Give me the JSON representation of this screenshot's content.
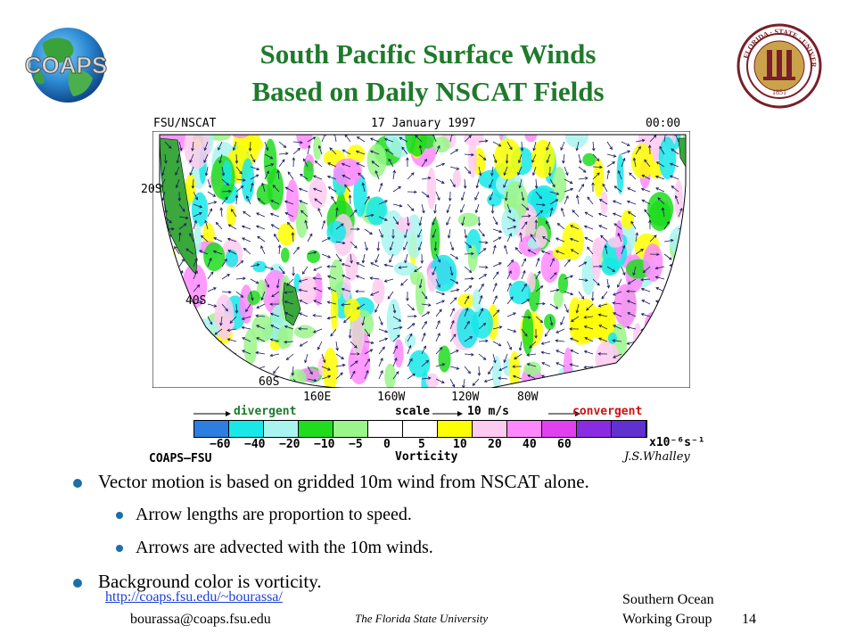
{
  "title": {
    "line1": "South Pacific Surface Winds",
    "line2": "Based on Daily NSCAT Fields"
  },
  "logo": {
    "text": "COAPS",
    "icon": "coaps-globe-logo"
  },
  "seal": {
    "icon": "florida-state-university-seal",
    "text": "FLORIDA STATE UNIVERSITY 1851"
  },
  "map": {
    "source_label": "FSU/NSCAT",
    "date_label": "17 January 1997",
    "time_label": "00:00",
    "lat_labels": [
      "20S",
      "40S",
      "60S"
    ],
    "lon_labels": [
      "160E",
      "160W",
      "120W",
      "80W"
    ],
    "legend_divergent": "divergent",
    "legend_convergent": "convergent",
    "scale_label": "scale",
    "scale_value": "10 m/s",
    "colorbar_ticks": [
      "−60",
      "−40",
      "−20",
      "−10",
      "−5",
      "0",
      "5",
      "10",
      "20",
      "40",
      "60"
    ],
    "colorbar_units": "x10⁻⁶s⁻¹",
    "colorbar_title": "Vorticity",
    "credit_left": "COAPS–FSU",
    "credit_right": "J.S.Whalley",
    "colorbar_colors": [
      "#2e7de0",
      "#18e8e8",
      "#a8f5f0",
      "#1fdc1f",
      "#9af58a",
      "#ffffff",
      "#ffffff",
      "#ffff00",
      "#ffcaf0",
      "#ff88ff",
      "#e040f0",
      "#8a2be2",
      "#6030d0"
    ]
  },
  "bullets": [
    {
      "text": "Vector motion is based on gridded 10m wind from NSCAT alone.",
      "level": 1
    },
    {
      "text": "Arrow lengths are proportion to speed.",
      "level": 2
    },
    {
      "text": "Arrows are advected with the 10m winds.",
      "level": 2
    },
    {
      "text": "Background color is vorticity.",
      "level": 1
    }
  ],
  "footer": {
    "url": "http://coaps.fsu.edu/~bourassa/",
    "email": "bourassa@coaps.fsu.edu",
    "university": "The Florida State University",
    "group_line1": "Southern Ocean",
    "group_line2": "Working Group",
    "page_number": "14"
  }
}
